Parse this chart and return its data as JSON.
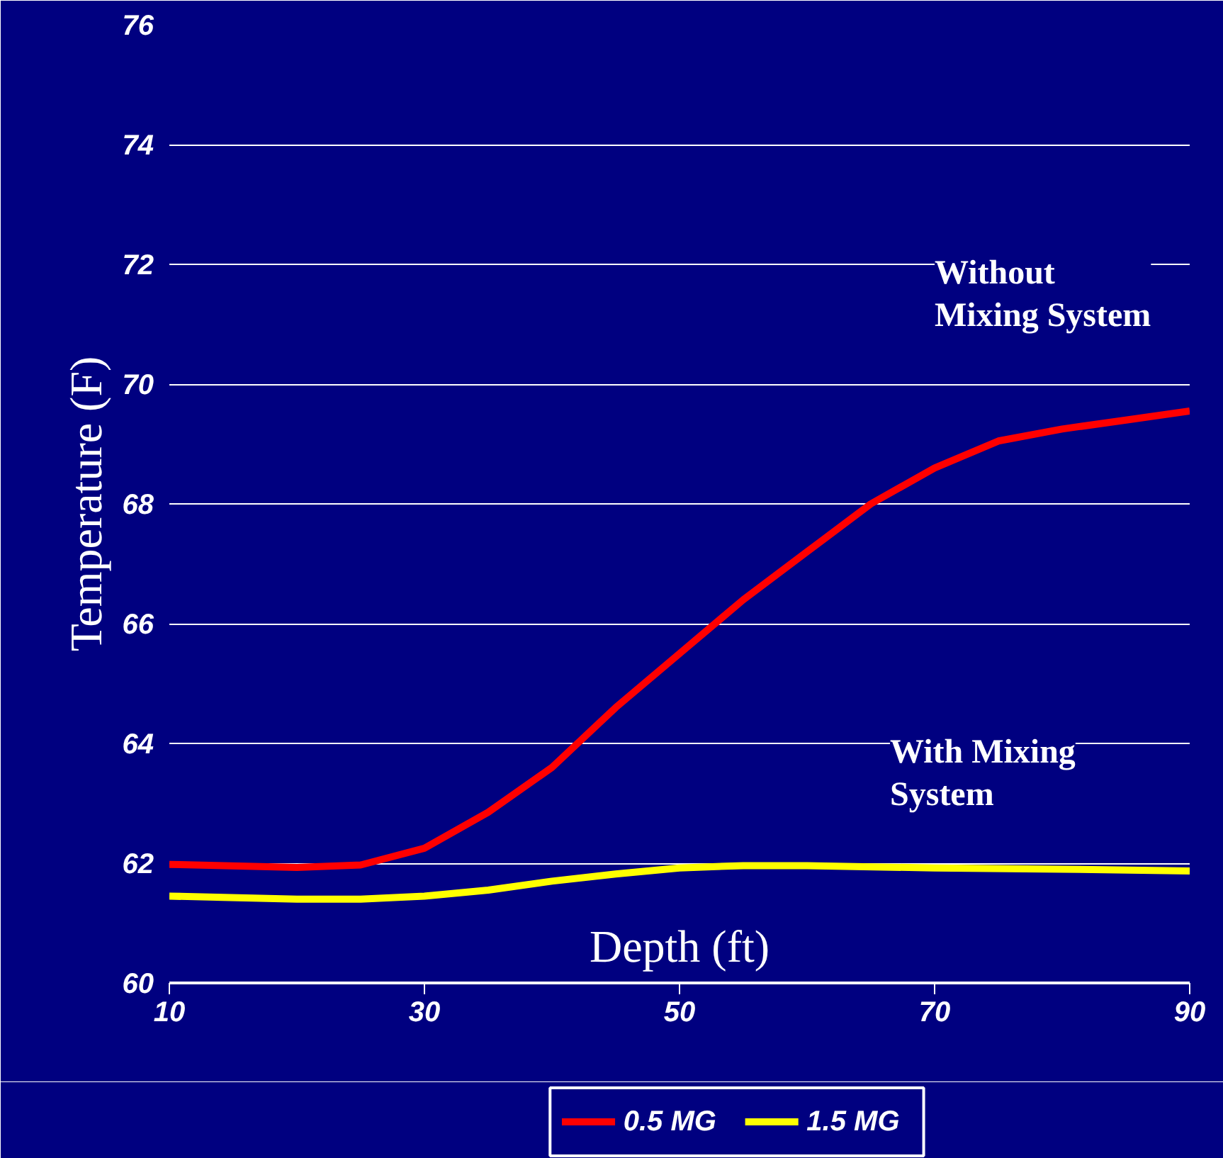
{
  "chart_data": {
    "type": "line",
    "xlabel": "Depth (ft)",
    "ylabel": "Temperature (F)",
    "xlim": [
      10,
      90
    ],
    "ylim": [
      60,
      76
    ],
    "xticks": [
      10,
      30,
      50,
      70,
      90
    ],
    "yticks": [
      60,
      62,
      64,
      66,
      68,
      70,
      72,
      74,
      76
    ],
    "grid": "y",
    "legend": "bottom",
    "marker": "none",
    "line_style": "solid",
    "annotations": [
      "Without\nMixing System",
      "With Mixing\nSystem"
    ],
    "series": [
      {
        "name": "0.5 MG",
        "color": "#ff0000",
        "x": [
          10,
          20,
          25,
          30,
          35,
          40,
          45,
          50,
          55,
          60,
          65,
          70,
          75,
          80,
          85,
          90
        ],
        "values": [
          61.98,
          61.93,
          61.97,
          62.25,
          62.85,
          63.6,
          64.6,
          65.5,
          66.4,
          67.2,
          68.0,
          68.6,
          69.05,
          69.25,
          69.4,
          69.55
        ]
      },
      {
        "name": "1.5 MG",
        "color": "#ffff00",
        "x": [
          10,
          20,
          25,
          30,
          35,
          40,
          45,
          50,
          55,
          60,
          70,
          80,
          90
        ],
        "values": [
          61.45,
          61.4,
          61.4,
          61.45,
          61.55,
          61.7,
          61.82,
          61.92,
          61.96,
          61.96,
          61.92,
          61.9,
          61.87
        ]
      }
    ]
  }
}
